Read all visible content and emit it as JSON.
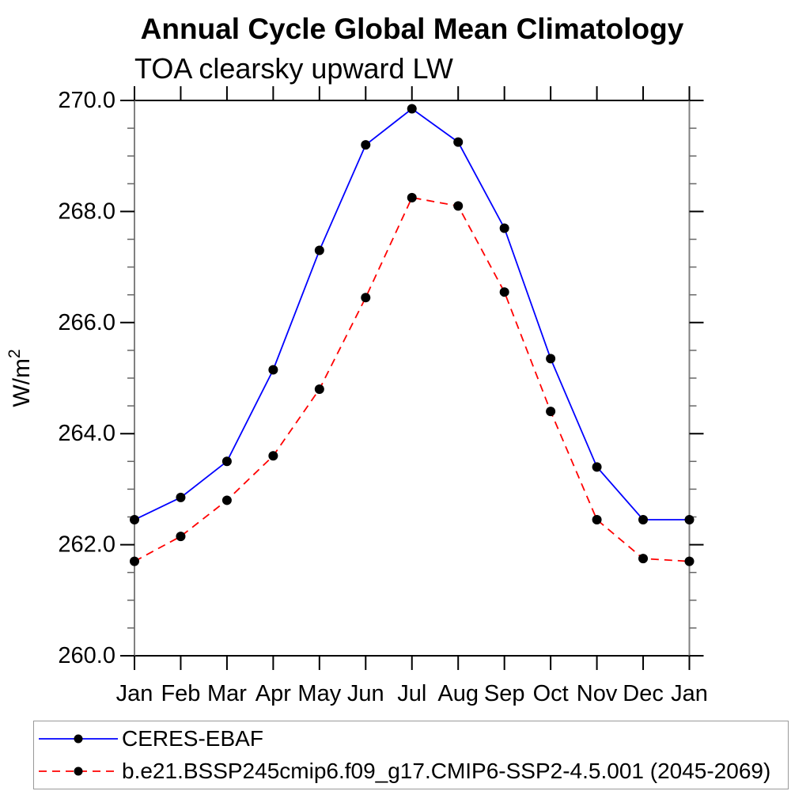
{
  "chart_data": {
    "type": "line",
    "title": "Annual Cycle Global Mean Climatology",
    "subtitle": "TOA clearsky upward LW",
    "x_categories": [
      "Jan",
      "Feb",
      "Mar",
      "Apr",
      "May",
      "Jun",
      "Jul",
      "Aug",
      "Sep",
      "Oct",
      "Nov",
      "Dec",
      "Jan"
    ],
    "ylabel": {
      "text": "W/m",
      "superscript": "2"
    },
    "ylim": [
      260.0,
      270.0
    ],
    "y_major_tick_labels": [
      "260.0",
      "262.0",
      "264.0",
      "266.0",
      "268.0",
      "270.0"
    ],
    "y_major_tick_values": [
      260.0,
      262.0,
      264.0,
      266.0,
      268.0,
      270.0
    ],
    "y_minor_tick_step": 0.5,
    "grid": false,
    "legend_position": "bottom-left",
    "series": [
      {
        "name": "CERES-EBAF",
        "line_color": "#0000ff",
        "line_style": "solid",
        "marker": "filled-circle",
        "marker_color": "#000000",
        "values": [
          262.45,
          262.85,
          263.5,
          265.15,
          267.3,
          269.2,
          269.85,
          269.25,
          267.7,
          265.35,
          263.4,
          262.45,
          262.45
        ]
      },
      {
        "name": "b.e21.BSSP245cmip6.f09_g17.CMIP6-SSP2-4.5.001 (2045-2069)",
        "line_color": "#ff0000",
        "line_style": "dashed",
        "marker": "filled-circle",
        "marker_color": "#000000",
        "values": [
          261.7,
          262.15,
          262.8,
          263.6,
          264.8,
          266.45,
          268.25,
          268.1,
          266.55,
          264.4,
          262.45,
          261.75,
          261.7
        ]
      }
    ],
    "style_colors": {
      "axis_top_bottom": "#000000",
      "axis_left_right": "#808080",
      "major_tick": "#000000",
      "minor_tick": "#666666",
      "text": "#000000",
      "legend_border": "#999999"
    }
  }
}
